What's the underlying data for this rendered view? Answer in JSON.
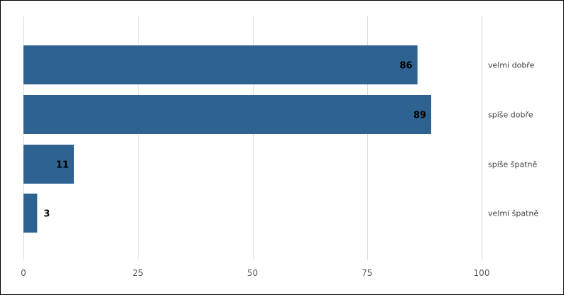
{
  "chart_data": {
    "type": "bar",
    "orientation": "horizontal",
    "categories": [
      "velmi dobře",
      "spíše dobře",
      "spíše špatně",
      "velmi špatně"
    ],
    "values": [
      86,
      89,
      11,
      3
    ],
    "xlim": [
      0,
      100
    ],
    "xticks": [
      0,
      25,
      50,
      75,
      100
    ],
    "grid": true,
    "colors": {
      "bar": "#2e6291",
      "grid": "#d9d9d9"
    }
  }
}
